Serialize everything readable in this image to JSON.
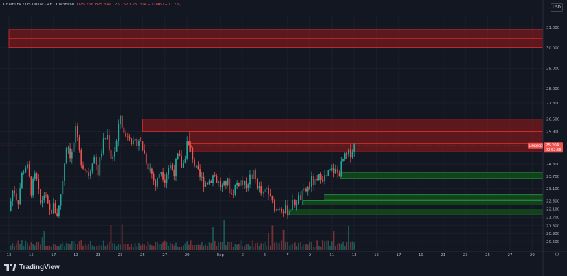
{
  "legend": {
    "symbol": "Chainlink / US Dollar · 4h · Coinbase",
    "ohlc": "O25.266 H25.349 L25.152 C25.204 −0.046 (−0.17%)"
  },
  "currency_button": "USD",
  "brand_label": "TradingView",
  "colors": {
    "background": "#131722",
    "up": "#26a69a",
    "down": "#ef5350",
    "supply_zone": "#b71c1c",
    "demand_zone": "#1b5e20"
  },
  "price_tag": {
    "symbol": "LINKUSD",
    "price": "25.204",
    "countdown": "02:52:58"
  },
  "chart_data": {
    "type": "candlestick",
    "price_axis": {
      "min": 20.1,
      "max": 31.6,
      "ticks": [
        {
          "value": 31.0,
          "label": "31.000"
        },
        {
          "value": 30.0,
          "label": "30.000"
        },
        {
          "value": 29.0,
          "label": "29.000"
        },
        {
          "value": 28.0,
          "label": "28.000"
        },
        {
          "value": 27.3,
          "label": "27.300"
        },
        {
          "value": 26.5,
          "label": "26.500"
        },
        {
          "value": 25.9,
          "label": "25.900"
        },
        {
          "value": 25.3,
          "label": "25.300"
        },
        {
          "value": 24.3,
          "label": "24.300"
        },
        {
          "value": 23.7,
          "label": "23.700"
        },
        {
          "value": 23.1,
          "label": "23.100"
        },
        {
          "value": 22.5,
          "label": "22.500"
        },
        {
          "value": 22.1,
          "label": "22.100"
        },
        {
          "value": 21.7,
          "label": "21.700"
        },
        {
          "value": 21.3,
          "label": "21.300"
        },
        {
          "value": 20.9,
          "label": "20.900"
        },
        {
          "value": 20.5,
          "label": "20.500"
        }
      ]
    },
    "date_axis": {
      "ticks": [
        {
          "day": 0,
          "label": "13"
        },
        {
          "day": 2,
          "label": "15"
        },
        {
          "day": 4,
          "label": "17"
        },
        {
          "day": 6,
          "label": "19"
        },
        {
          "day": 8,
          "label": "21"
        },
        {
          "day": 10,
          "label": "23"
        },
        {
          "day": 12,
          "label": "25"
        },
        {
          "day": 14,
          "label": "27"
        },
        {
          "day": 16,
          "label": "29"
        },
        {
          "day": 19,
          "label": "Sep"
        },
        {
          "day": 21,
          "label": "3"
        },
        {
          "day": 23,
          "label": "5"
        },
        {
          "day": 25,
          "label": "7"
        },
        {
          "day": 27,
          "label": "9"
        },
        {
          "day": 29,
          "label": "11"
        },
        {
          "day": 31,
          "label": "13"
        },
        {
          "day": 33,
          "label": "15"
        },
        {
          "day": 35,
          "label": "17"
        },
        {
          "day": 37,
          "label": "19"
        },
        {
          "day": 39,
          "label": "21"
        },
        {
          "day": 41,
          "label": "23"
        },
        {
          "day": 43,
          "label": "25"
        },
        {
          "day": 45,
          "label": "27"
        },
        {
          "day": 47,
          "label": "29"
        }
      ]
    },
    "close_path": [
      [
        0.0,
        22.0
      ],
      [
        0.4,
        23.2
      ],
      [
        0.8,
        22.4
      ],
      [
        1.2,
        23.9
      ],
      [
        1.6,
        24.3
      ],
      [
        2.0,
        23.0
      ],
      [
        2.4,
        23.8
      ],
      [
        2.8,
        22.3
      ],
      [
        3.2,
        22.9
      ],
      [
        3.6,
        21.9
      ],
      [
        4.0,
        22.2
      ],
      [
        4.4,
        21.8
      ],
      [
        4.8,
        23.4
      ],
      [
        5.2,
        25.4
      ],
      [
        5.6,
        24.6
      ],
      [
        6.0,
        25.9
      ],
      [
        6.4,
        24.6
      ],
      [
        6.8,
        24.1
      ],
      [
        7.2,
        23.8
      ],
      [
        7.6,
        24.8
      ],
      [
        8.0,
        23.9
      ],
      [
        8.4,
        25.2
      ],
      [
        8.8,
        25.8
      ],
      [
        9.2,
        24.6
      ],
      [
        9.6,
        25.1
      ],
      [
        10.0,
        26.7
      ],
      [
        10.4,
        25.6
      ],
      [
        10.8,
        25.9
      ],
      [
        11.2,
        25.1
      ],
      [
        11.6,
        25.6
      ],
      [
        12.0,
        25.1
      ],
      [
        12.4,
        24.4
      ],
      [
        12.8,
        23.9
      ],
      [
        13.2,
        23.2
      ],
      [
        13.6,
        24.1
      ],
      [
        14.0,
        23.6
      ],
      [
        14.4,
        24.3
      ],
      [
        14.8,
        23.9
      ],
      [
        15.2,
        24.7
      ],
      [
        15.6,
        24.1
      ],
      [
        16.0,
        25.3
      ],
      [
        16.4,
        24.9
      ],
      [
        16.8,
        24.0
      ],
      [
        17.2,
        23.6
      ],
      [
        17.6,
        23.4
      ],
      [
        18.0,
        23.5
      ],
      [
        18.4,
        23.8
      ],
      [
        18.8,
        23.4
      ],
      [
        19.2,
        23.1
      ],
      [
        19.6,
        23.5
      ],
      [
        20.0,
        22.8
      ],
      [
        20.4,
        23.3
      ],
      [
        20.8,
        23.5
      ],
      [
        21.2,
        23.2
      ],
      [
        21.6,
        23.6
      ],
      [
        22.0,
        23.8
      ],
      [
        22.4,
        23.2
      ],
      [
        22.8,
        22.7
      ],
      [
        23.2,
        23.1
      ],
      [
        23.6,
        22.4
      ],
      [
        24.0,
        22.1
      ],
      [
        24.4,
        22.3
      ],
      [
        24.8,
        22.0
      ],
      [
        25.2,
        22.1
      ],
      [
        25.6,
        22.4
      ],
      [
        26.0,
        22.6
      ],
      [
        26.4,
        22.8
      ],
      [
        26.8,
        23.1
      ],
      [
        27.2,
        23.5
      ],
      [
        27.6,
        23.3
      ],
      [
        28.0,
        23.8
      ],
      [
        28.4,
        23.6
      ],
      [
        28.8,
        23.9
      ],
      [
        29.2,
        24.0
      ],
      [
        29.6,
        23.8
      ],
      [
        30.0,
        24.5
      ],
      [
        30.4,
        24.7
      ],
      [
        30.8,
        25.0
      ],
      [
        31.0,
        25.2
      ]
    ],
    "supply_zones": [
      {
        "day_start": 0,
        "day_end": 48.3,
        "low": 30.0,
        "high": 30.45
      },
      {
        "day_start": 0,
        "day_end": 48.3,
        "low": 30.45,
        "high": 30.9
      },
      {
        "day_start": 12.0,
        "day_end": 48.3,
        "low": 25.9,
        "high": 26.5
      },
      {
        "day_start": 16.2,
        "day_end": 48.3,
        "low": 25.3,
        "high": 25.9
      },
      {
        "day_start": 16.2,
        "day_end": 48.3,
        "low": 24.9,
        "high": 25.3
      }
    ],
    "demand_zones": [
      {
        "day_start": 29.8,
        "day_end": 48.3,
        "low": 23.6,
        "high": 23.9
      },
      {
        "day_start": 28.3,
        "day_end": 48.3,
        "low": 22.55,
        "high": 22.8
      },
      {
        "day_start": 26.4,
        "day_end": 48.3,
        "low": 22.3,
        "high": 22.5
      },
      {
        "day_start": 25.0,
        "day_end": 48.3,
        "low": 21.85,
        "high": 22.1
      }
    ]
  }
}
